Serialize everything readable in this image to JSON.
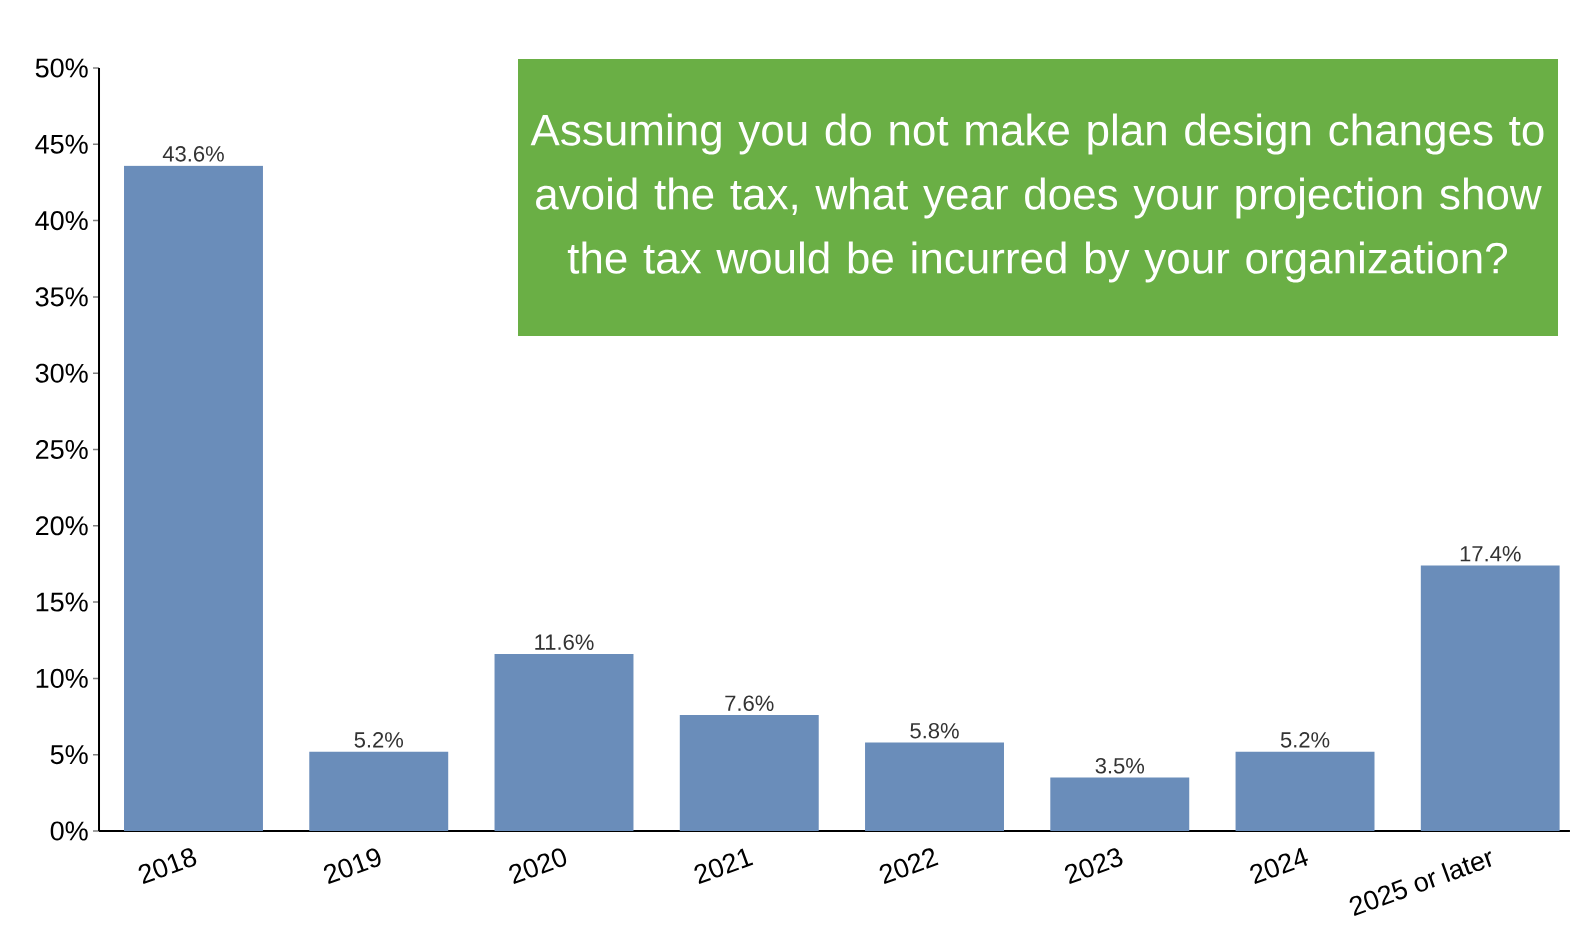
{
  "chart_data": {
    "type": "bar",
    "title": "Assuming you do not make plan design changes to avoid the tax, what year does your projection show the tax would be incurred by your organization?",
    "categories": [
      "2018",
      "2019",
      "2020",
      "2021",
      "2022",
      "2023",
      "2024",
      "2025 or later"
    ],
    "values": [
      43.6,
      5.2,
      11.6,
      7.6,
      5.8,
      3.5,
      5.2,
      17.4
    ],
    "value_labels": [
      "43.6%",
      "5.2%",
      "11.6%",
      "7.6%",
      "5.8%",
      "3.5%",
      "5.2%",
      "17.4%"
    ],
    "color": "#6a8dba",
    "ylim": [
      0,
      50
    ],
    "yticks": [
      {
        "value": 0,
        "label": "0%"
      },
      {
        "value": 5,
        "label": "5%"
      },
      {
        "value": 10,
        "label": "10%"
      },
      {
        "value": 15,
        "label": "15%"
      },
      {
        "value": 20,
        "label": "20%"
      },
      {
        "value": 25,
        "label": "25%"
      },
      {
        "value": 30,
        "label": "30%"
      },
      {
        "value": 35,
        "label": "35%"
      },
      {
        "value": 40,
        "label": "40%"
      },
      {
        "value": 45,
        "label": "45%"
      },
      {
        "value": 50,
        "label": "50%"
      }
    ],
    "grid": false
  }
}
